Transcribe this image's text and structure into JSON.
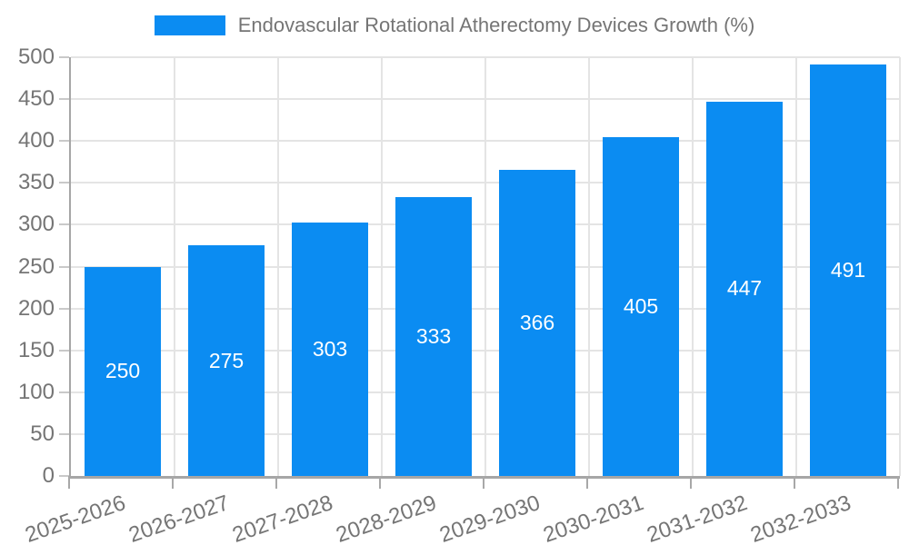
{
  "chart_data": {
    "type": "bar",
    "title": "Endovascular Rotational Atherectomy Devices Growth (%)",
    "categories": [
      "2025-2026",
      "2026-2027",
      "2027-2028",
      "2028-2029",
      "2029-2030",
      "2030-2031",
      "2031-2032",
      "2032-2033"
    ],
    "values": [
      250,
      275,
      303,
      333,
      366,
      405,
      447,
      491
    ],
    "xlabel": "",
    "ylabel": "",
    "ylim": [
      0,
      500
    ],
    "yticks": [
      0,
      50,
      100,
      150,
      200,
      250,
      300,
      350,
      400,
      450,
      500
    ],
    "grid": true,
    "legend_position": "top",
    "bar_labels_inside": true,
    "colors": {
      "bar": "#0b8cf2",
      "bar_label": "#ffffff",
      "axis_text": "#757575",
      "grid": "#e4e4e4",
      "axis_line": "#a6a6a6",
      "y_tick": "#c9c9c9",
      "x_tick": "#a8a8a8",
      "background": "#ffffff"
    }
  }
}
